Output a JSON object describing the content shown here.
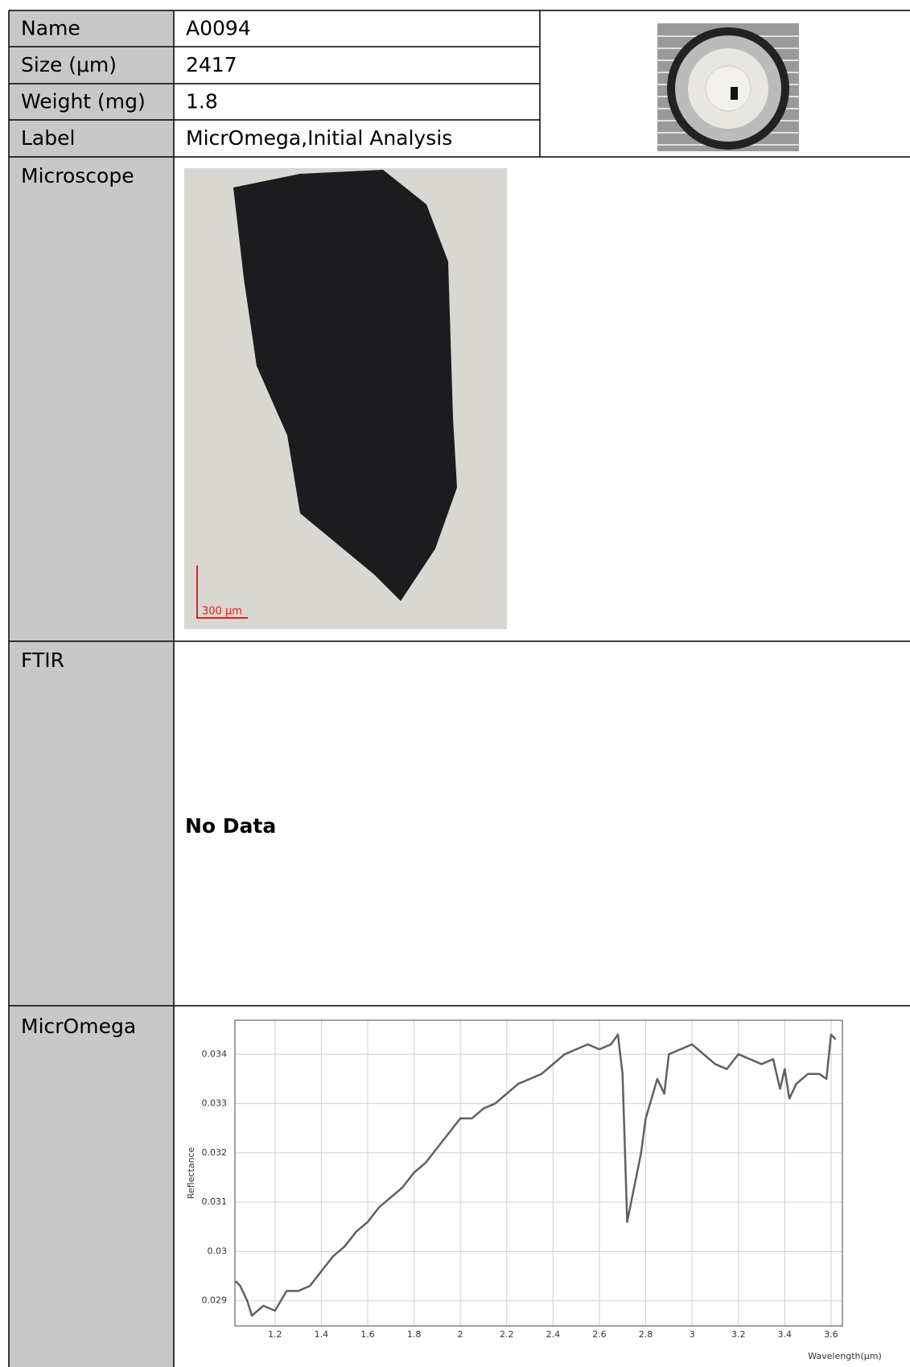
{
  "table": {
    "rows": [
      [
        "Name",
        "A0094"
      ],
      [
        "Size (μm)",
        "2417"
      ],
      [
        "Weight (mg)",
        "1.8"
      ],
      [
        "Label",
        "MicrOmega,Initial Analysis"
      ]
    ],
    "microscope": {
      "label": "Microscope",
      "scale_bar": "300 μm"
    },
    "ftir": {
      "label": "FTIR",
      "text": "No Data"
    },
    "micromega": {
      "label": "MicrOmega"
    }
  },
  "chart_data": {
    "type": "line",
    "x_label": "Wavelength(μm)",
    "y_label": "Reflectance",
    "xlim": [
      1.027,
      3.649
    ],
    "ylim": [
      0.02849,
      0.03469
    ],
    "xticks": [
      1.2,
      1.4,
      1.6,
      1.8,
      2,
      2.2,
      2.4,
      2.6,
      2.8,
      3,
      3.2,
      3.4,
      3.6
    ],
    "yticks": [
      0.029,
      0.03,
      0.031,
      0.032,
      0.033,
      0.034
    ],
    "grid": true,
    "x": [
      1.03,
      1.05,
      1.08,
      1.1,
      1.15,
      1.2,
      1.25,
      1.3,
      1.35,
      1.4,
      1.45,
      1.5,
      1.55,
      1.6,
      1.65,
      1.7,
      1.75,
      1.8,
      1.85,
      1.9,
      1.95,
      2.0,
      2.05,
      2.1,
      2.15,
      2.2,
      2.25,
      2.3,
      2.35,
      2.4,
      2.45,
      2.5,
      2.55,
      2.6,
      2.65,
      2.68,
      2.7,
      2.72,
      2.75,
      2.78,
      2.8,
      2.85,
      2.88,
      2.9,
      2.95,
      3.0,
      3.05,
      3.1,
      3.15,
      3.2,
      3.25,
      3.3,
      3.35,
      3.38,
      3.4,
      3.42,
      3.45,
      3.5,
      3.55,
      3.58,
      3.6,
      3.62
    ],
    "series": [
      {
        "name": "Reflectance",
        "color": "#606060",
        "values": [
          0.0294,
          0.0293,
          0.029,
          0.0287,
          0.0289,
          0.0288,
          0.0292,
          0.0292,
          0.0293,
          0.0296,
          0.0299,
          0.0301,
          0.0304,
          0.0306,
          0.0309,
          0.0311,
          0.0313,
          0.0316,
          0.0318,
          0.0321,
          0.0324,
          0.0327,
          0.0327,
          0.0329,
          0.033,
          0.0332,
          0.0334,
          0.0335,
          0.0336,
          0.0338,
          0.034,
          0.0341,
          0.0342,
          0.0341,
          0.0342,
          0.0344,
          0.0336,
          0.0306,
          0.0313,
          0.032,
          0.0327,
          0.0335,
          0.0332,
          0.034,
          0.0341,
          0.0342,
          0.034,
          0.0338,
          0.0337,
          0.034,
          0.0339,
          0.0338,
          0.0339,
          0.0333,
          0.0337,
          0.0331,
          0.0334,
          0.0336,
          0.0336,
          0.0335,
          0.0344,
          0.0343
        ]
      }
    ]
  }
}
